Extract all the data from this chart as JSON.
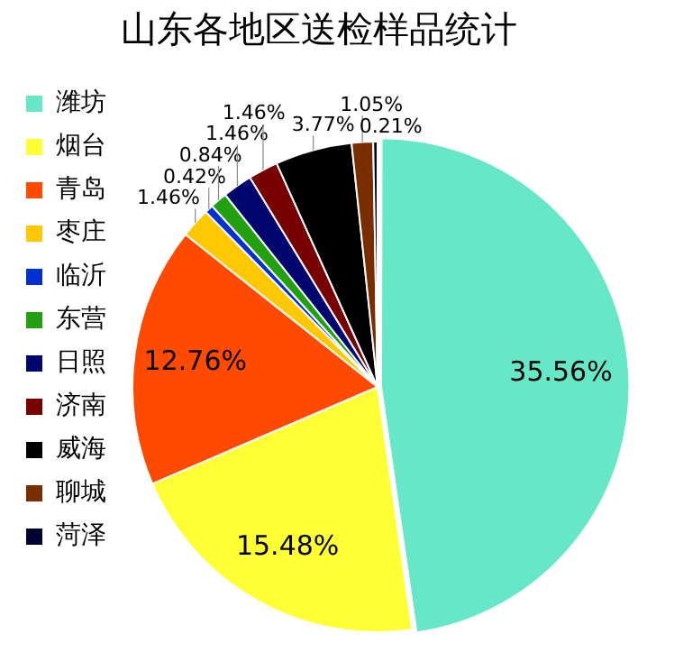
{
  "chart_data": {
    "type": "pie",
    "title": "山东各地区送检样品统计",
    "categories": [
      "潍坊",
      "烟台",
      "青岛",
      "枣庄",
      "临沂",
      "东营",
      "日照",
      "济南",
      "威海",
      "聊城",
      "菏泽"
    ],
    "values": [
      35.56,
      15.48,
      12.76,
      1.46,
      0.42,
      0.84,
      1.46,
      1.46,
      3.77,
      1.05,
      0.21
    ],
    "value_labels": [
      "35.56%",
      "15.48%",
      "12.76%",
      "1.46%",
      "0.42%",
      "0.84%",
      "1.46%",
      "1.46%",
      "3.77%",
      "1.05%",
      "0.21%"
    ],
    "colors": [
      "#66e8c8",
      "#ffff33",
      "#ff4a00",
      "#ffc800",
      "#0030d0",
      "#22a010",
      "#00066e",
      "#780000",
      "#000000",
      "#7a2e00",
      "#000033"
    ],
    "legend": "left"
  }
}
